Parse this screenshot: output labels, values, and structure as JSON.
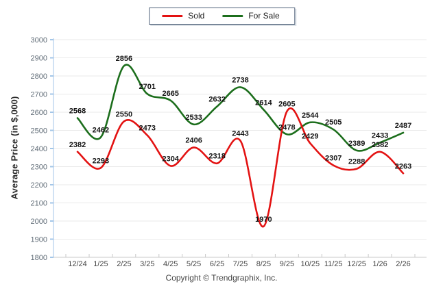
{
  "legend": {
    "items": [
      {
        "label": "Sold"
      },
      {
        "label": "For Sale"
      }
    ]
  },
  "chart_data": {
    "type": "line",
    "categories": [
      "12/24",
      "1/25",
      "2/25",
      "3/25",
      "4/25",
      "5/25",
      "6/25",
      "7/25",
      "8/25",
      "9/25",
      "10/25",
      "11/25",
      "12/25",
      "1/26",
      "2/26"
    ],
    "series": [
      {
        "name": "For Sale",
        "color": "#1c6e1c",
        "values": [
          2568,
          2462,
          2856,
          2701,
          2665,
          2533,
          2632,
          2738,
          2614,
          2478,
          2544,
          2505,
          2389,
          2433,
          2487
        ]
      },
      {
        "name": "Sold",
        "color": "#e31212",
        "values": [
          2382,
          2293,
          2550,
          2473,
          2304,
          2406,
          2318,
          2443,
          1970,
          2605,
          2429,
          2307,
          2288,
          2382,
          2263
        ]
      }
    ],
    "title": "",
    "xlabel": "",
    "ylabel": "Average Price (in $,000)",
    "ylim": [
      1800,
      3000
    ],
    "ytick_step": 100,
    "grid": true,
    "legend_position": "top",
    "data_labels": true
  },
  "colors": {
    "grid": "#eaeaea",
    "x_axis": "#c8c8c8",
    "y_axis": "#a3c6e8",
    "y_tick_label": "#5f6b76",
    "x_tick_label": "#474747",
    "data_label": "#141414"
  },
  "footer": {
    "text": "Copyright © Trendgraphix, Inc."
  }
}
